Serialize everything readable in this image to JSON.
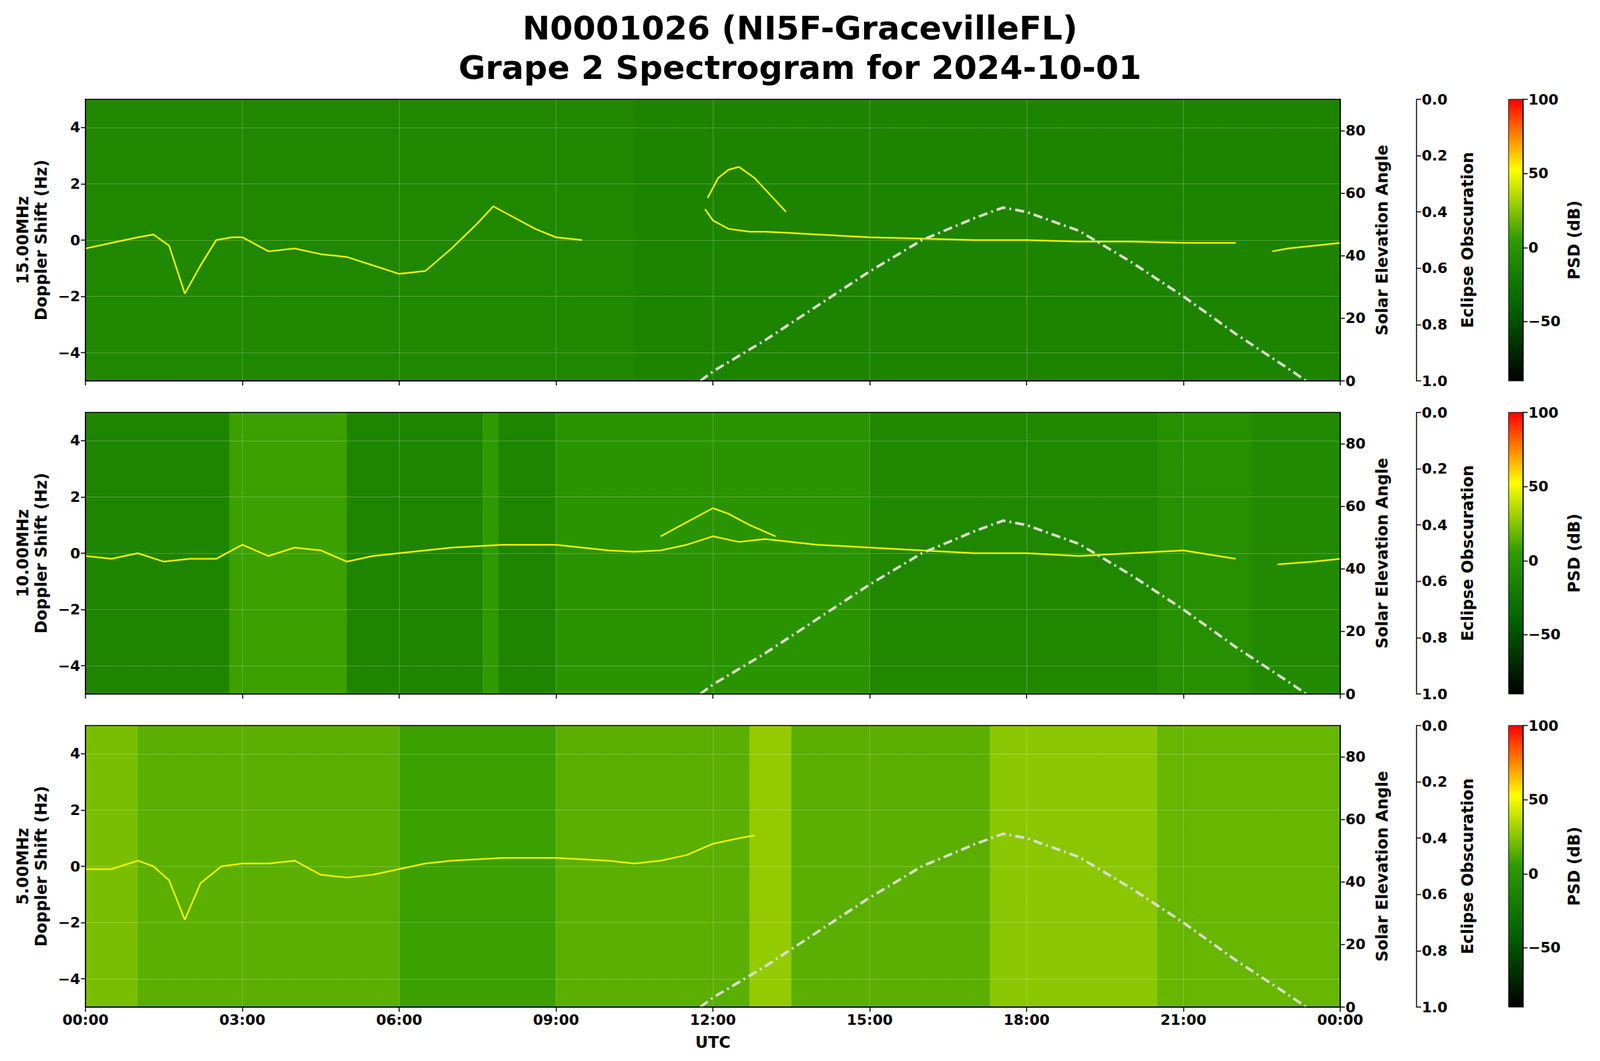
{
  "title": "N0001026 (NI5F-GracevilleFL)",
  "subtitle": "Grape 2 Spectrogram for 2024-10-01",
  "chart_data": [
    {
      "type": "line",
      "ylabel": "15.00MHz\nDoppler Shift (Hz)",
      "xlim": [
        0,
        24
      ],
      "xticks": [
        {
          "value": 0,
          "label": "00:00"
        },
        {
          "value": 3,
          "label": "03:00"
        },
        {
          "value": 6,
          "label": "06:00"
        },
        {
          "value": 9,
          "label": "09:00"
        },
        {
          "value": 12,
          "label": "12:00"
        },
        {
          "value": 15,
          "label": "15:00"
        },
        {
          "value": 18,
          "label": "18:00"
        },
        {
          "value": 21,
          "label": "21:00"
        },
        {
          "value": 24,
          "label": "00:00"
        }
      ],
      "ylim": [
        -5,
        5
      ],
      "yticks": [
        {
          "value": -4,
          "label": "−4"
        },
        {
          "value": -2,
          "label": "−2"
        },
        0,
        2,
        4
      ],
      "y2label": "Solar Elevation Angle",
      "y2lim": [
        0,
        90
      ],
      "y2ticks": [
        0,
        20,
        40,
        60,
        80
      ],
      "obscuration": {
        "label": "Eclipse Obscuration",
        "lim": [
          1,
          0
        ],
        "ticks": [
          {
            "value": 0,
            "label": "0.0"
          },
          {
            "value": 0.2,
            "label": "0.2"
          },
          {
            "value": 0.4,
            "label": "0.4"
          },
          {
            "value": 0.6,
            "label": "0.6"
          },
          {
            "value": 0.8,
            "label": "0.8"
          },
          {
            "value": 1,
            "label": "1.0"
          }
        ]
      },
      "colorbar": {
        "label": "PSD (dB)",
        "lim": [
          -90,
          100
        ],
        "ticks": [
          {
            "value": -50,
            "label": "−50"
          },
          0,
          50,
          100
        ],
        "colors": [
          "#000000",
          "#006000",
          "#2e9a00",
          "#ffff00",
          "#ff0000"
        ]
      },
      "background": {
        "bins": [
          0,
          10.5,
          24
        ],
        "psd": [
          -10,
          -13
        ]
      },
      "grid": true,
      "tick_labels": "y",
      "series": [
        {
          "color": "#f0f000",
          "x": [
            0,
            0.5,
            1,
            1.3,
            1.6,
            1.9,
            2.2,
            2.5,
            2.8,
            3,
            3.5,
            4,
            4.5,
            5,
            5.5,
            6,
            6.5,
            7,
            7.5,
            7.8,
            8.2,
            8.6,
            9,
            9.5,
            10.5,
            11.85,
            12,
            12.3,
            12.7,
            13,
            13.5,
            14,
            15,
            16,
            17,
            18,
            19,
            20,
            21,
            22,
            22.3,
            22.7,
            23,
            23.5,
            24
          ],
          "values": [
            -0.3,
            -0.1,
            0.1,
            0.2,
            -0.2,
            -1.9,
            -0.9,
            0,
            0.1,
            0.1,
            -0.4,
            -0.3,
            -0.5,
            -0.6,
            -0.9,
            -1.2,
            -1.1,
            -0.3,
            0.6,
            1.2,
            0.8,
            0.4,
            0.1,
            0,
            null,
            1.1,
            0.7,
            0.4,
            0.3,
            0.3,
            0.25,
            0.2,
            0.1,
            0.05,
            0,
            0,
            -0.05,
            -0.05,
            -0.1,
            -0.1,
            null,
            -0.4,
            -0.3,
            -0.2,
            -0.1
          ]
        },
        {
          "color": "#f0f000",
          "x": [
            11.9,
            12.1,
            12.3,
            12.5,
            12.8,
            13.1,
            13.4
          ],
          "values": [
            1.5,
            2.2,
            2.5,
            2.6,
            2.2,
            1.6,
            1.0
          ]
        },
        {
          "color": "#dcdcc8",
          "axis": "y2",
          "line_style": "dashdot",
          "x": [
            11.76,
            12,
            13,
            14,
            15,
            16,
            17,
            17.55,
            18,
            19,
            20,
            21,
            22,
            23,
            23.35
          ],
          "values": [
            0,
            3,
            13,
            24,
            35,
            45,
            52,
            55.4,
            54,
            48,
            38,
            27,
            15,
            4,
            0
          ]
        }
      ]
    },
    {
      "type": "line",
      "ylabel": "10.00MHz\nDoppler Shift (Hz)",
      "xlim": [
        0,
        24
      ],
      "xticks": [
        {
          "value": 0,
          "label": "00:00"
        },
        {
          "value": 3,
          "label": "03:00"
        },
        {
          "value": 6,
          "label": "06:00"
        },
        {
          "value": 9,
          "label": "09:00"
        },
        {
          "value": 12,
          "label": "12:00"
        },
        {
          "value": 15,
          "label": "15:00"
        },
        {
          "value": 18,
          "label": "18:00"
        },
        {
          "value": 21,
          "label": "21:00"
        },
        {
          "value": 24,
          "label": "00:00"
        }
      ],
      "ylim": [
        -5,
        5
      ],
      "yticks": [
        {
          "value": -4,
          "label": "−4"
        },
        {
          "value": -2,
          "label": "−2"
        },
        0,
        2,
        4
      ],
      "y2label": "Solar Elevation Angle",
      "y2lim": [
        0,
        90
      ],
      "y2ticks": [
        0,
        20,
        40,
        60,
        80
      ],
      "obscuration": {
        "label": "Eclipse Obscuration",
        "lim": [
          1,
          0
        ],
        "ticks": [
          {
            "value": 0,
            "label": "0.0"
          },
          {
            "value": 0.2,
            "label": "0.2"
          },
          {
            "value": 0.4,
            "label": "0.4"
          },
          {
            "value": 0.6,
            "label": "0.6"
          },
          {
            "value": 0.8,
            "label": "0.8"
          },
          {
            "value": 1,
            "label": "1.0"
          }
        ]
      },
      "colorbar": {
        "label": "PSD (dB)",
        "lim": [
          -90,
          100
        ],
        "ticks": [
          {
            "value": -50,
            "label": "−50"
          },
          0,
          50,
          100
        ],
        "colors": [
          "#000000",
          "#006000",
          "#2e9a00",
          "#ffff00",
          "#ff0000"
        ]
      },
      "background": {
        "bins": [
          0,
          2.75,
          5,
          7.6,
          7.9,
          9,
          15,
          20.5,
          22.3,
          24
        ],
        "psd": [
          -12,
          8,
          -12,
          5,
          -12,
          0,
          -10,
          -3,
          -8
        ]
      },
      "grid": true,
      "tick_labels": "y",
      "series": [
        {
          "color": "#f0f000",
          "x": [
            0,
            0.5,
            1,
            1.5,
            2,
            2.5,
            2.8,
            3,
            3.5,
            4,
            4.5,
            5,
            5.5,
            6,
            7,
            8,
            9,
            10,
            10.5,
            11,
            11.5,
            12,
            12.5,
            13,
            14,
            15,
            16,
            17,
            18,
            19,
            20,
            21,
            22,
            22.3,
            22.8,
            23.5,
            24
          ],
          "values": [
            -0.1,
            -0.2,
            0,
            -0.3,
            -0.2,
            -0.2,
            0.1,
            0.3,
            -0.1,
            0.2,
            0.1,
            -0.3,
            -0.1,
            0,
            0.2,
            0.3,
            0.3,
            0.1,
            0.05,
            0.1,
            0.3,
            0.6,
            0.4,
            0.5,
            0.3,
            0.2,
            0.1,
            0,
            0,
            -0.1,
            0,
            0.1,
            -0.2,
            null,
            -0.4,
            -0.3,
            -0.2
          ]
        },
        {
          "color": "#f0f000",
          "x": [
            11,
            11.5,
            12,
            12.3,
            12.7,
            13.2
          ],
          "values": [
            0.6,
            1.1,
            1.6,
            1.4,
            1.0,
            0.6
          ]
        },
        {
          "color": "#dcdcc8",
          "axis": "y2",
          "line_style": "dashdot",
          "x": [
            11.76,
            12,
            13,
            14,
            15,
            16,
            17,
            17.55,
            18,
            19,
            20,
            21,
            22,
            23,
            23.35
          ],
          "values": [
            0,
            3,
            13,
            24,
            35,
            45,
            52,
            55.4,
            54,
            48,
            38,
            27,
            15,
            4,
            0
          ]
        }
      ]
    },
    {
      "type": "line",
      "ylabel": "5.00MHz\nDoppler Shift (Hz)",
      "xlabel": "UTC",
      "xlim": [
        0,
        24
      ],
      "xticks": [
        {
          "value": 0,
          "label": "00:00"
        },
        {
          "value": 3,
          "label": "03:00"
        },
        {
          "value": 6,
          "label": "06:00"
        },
        {
          "value": 9,
          "label": "09:00"
        },
        {
          "value": 12,
          "label": "12:00"
        },
        {
          "value": 15,
          "label": "15:00"
        },
        {
          "value": 18,
          "label": "18:00"
        },
        {
          "value": 21,
          "label": "21:00"
        },
        {
          "value": 24,
          "label": "00:00"
        }
      ],
      "ylim": [
        -5,
        5
      ],
      "yticks": [
        {
          "value": -4,
          "label": "−4"
        },
        {
          "value": -2,
          "label": "−2"
        },
        0,
        2,
        4
      ],
      "y2label": "Solar Elevation Angle",
      "y2lim": [
        0,
        90
      ],
      "y2ticks": [
        0,
        20,
        40,
        60,
        80
      ],
      "obscuration": {
        "label": "Eclipse Obscuration",
        "lim": [
          1,
          0
        ],
        "ticks": [
          {
            "value": 0,
            "label": "0.0"
          },
          {
            "value": 0.2,
            "label": "0.2"
          },
          {
            "value": 0.4,
            "label": "0.4"
          },
          {
            "value": 0.6,
            "label": "0.6"
          },
          {
            "value": 0.8,
            "label": "0.8"
          },
          {
            "value": 1,
            "label": "1.0"
          }
        ]
      },
      "colorbar": {
        "label": "PSD (dB)",
        "lim": [
          -90,
          100
        ],
        "ticks": [
          {
            "value": -50,
            "label": "−50"
          },
          0,
          50,
          100
        ],
        "colors": [
          "#000000",
          "#006000",
          "#2e9a00",
          "#ffff00",
          "#ff0000"
        ]
      },
      "background": {
        "bins": [
          0,
          1,
          6,
          9,
          12.7,
          13.5,
          17.3,
          20.5,
          24
        ],
        "psd": [
          22,
          15,
          8,
          15,
          28,
          15,
          26,
          18
        ]
      },
      "grid": true,
      "series": [
        {
          "color": "#f0f000",
          "x": [
            0,
            0.5,
            1,
            1.3,
            1.6,
            1.9,
            2.2,
            2.6,
            3,
            3.5,
            4,
            4.5,
            5,
            5.5,
            6,
            6.5,
            7,
            8,
            9,
            10,
            10.5,
            11,
            11.5,
            12,
            12.5,
            12.8
          ],
          "values": [
            -0.1,
            -0.1,
            0.2,
            0,
            -0.5,
            -1.9,
            -0.6,
            0,
            0.1,
            0.1,
            0.2,
            -0.3,
            -0.4,
            -0.3,
            -0.1,
            0.1,
            0.2,
            0.3,
            0.3,
            0.2,
            0.1,
            0.2,
            0.4,
            0.8,
            1.0,
            1.1
          ]
        },
        {
          "color": "#dcdcc8",
          "axis": "y2",
          "line_style": "dashdot",
          "x": [
            11.76,
            12,
            13,
            14,
            15,
            16,
            17,
            17.55,
            18,
            19,
            20,
            21,
            22,
            23,
            23.35
          ],
          "values": [
            0,
            3,
            13,
            24,
            35,
            45,
            52,
            55.4,
            54,
            48,
            38,
            27,
            15,
            4,
            0
          ]
        }
      ]
    }
  ]
}
